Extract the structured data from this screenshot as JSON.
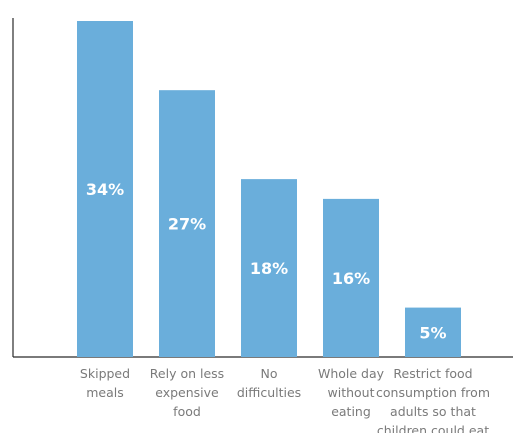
{
  "chart_data": {
    "type": "bar",
    "categories": [
      "Skipped meals",
      "Rely on less expensive food",
      "No difficulties",
      "Whole day without eating",
      "Restrict food consumption from adults so that children could eat"
    ],
    "category_label_lines": [
      [
        "Skipped",
        "meals"
      ],
      [
        "Rely on less",
        "expensive",
        "food"
      ],
      [
        "No",
        "difficulties"
      ],
      [
        "Whole day",
        "without",
        "eating"
      ],
      [
        "Restrict food",
        "consumption from",
        "adults so that",
        "children could eat"
      ]
    ],
    "values": [
      34,
      27,
      18,
      16,
      5
    ],
    "value_labels": [
      "34%",
      "27%",
      "18%",
      "16%",
      "5%"
    ],
    "ylim": [
      0,
      34
    ],
    "grid": false,
    "legend": "none",
    "bar_color": "#6aaedb",
    "value_label_color": "#ffffff",
    "category_label_color": "#7a7a7a",
    "axis_color": "#2b2b2b"
  }
}
